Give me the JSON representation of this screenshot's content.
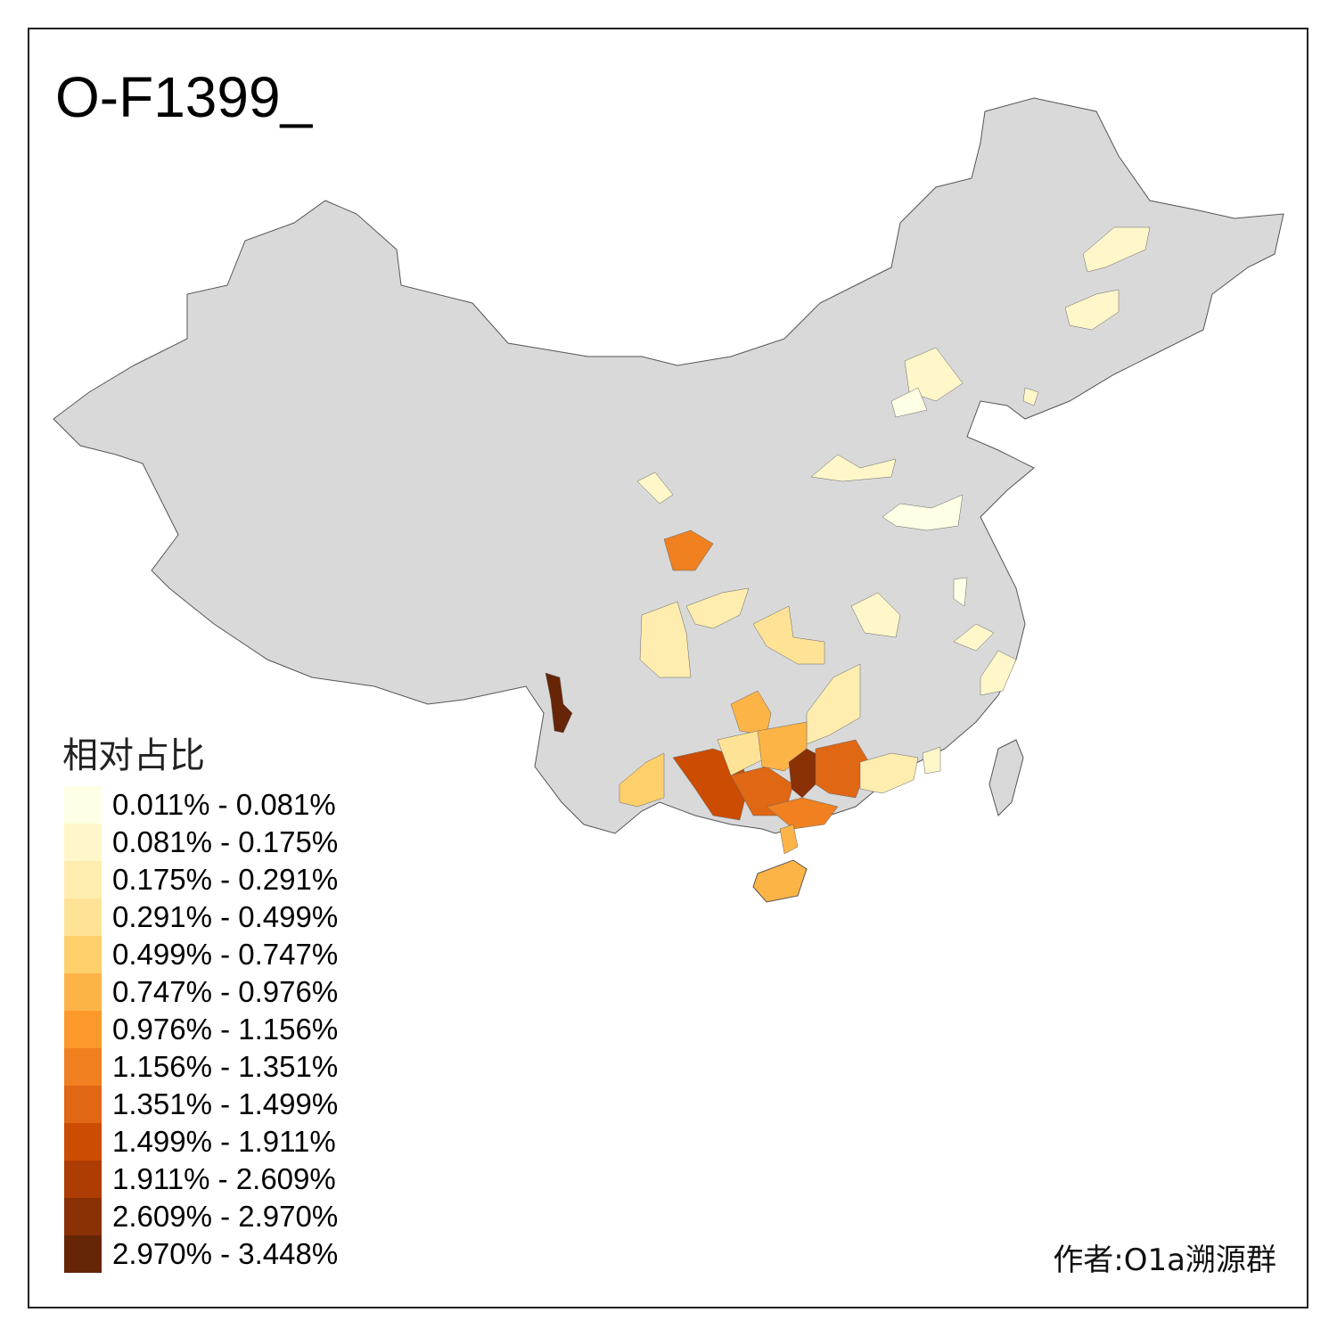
{
  "title": "O-F1399_",
  "legend": {
    "title": "相对占比",
    "classes": [
      {
        "label": "0.011% - 0.081%",
        "color": "#FFFFE5"
      },
      {
        "label": "0.081% - 0.175%",
        "color": "#FFF7C9"
      },
      {
        "label": "0.175% - 0.291%",
        "color": "#FEEDAE"
      },
      {
        "label": "0.291% - 0.499%",
        "color": "#FEE396"
      },
      {
        "label": "0.499% - 0.747%",
        "color": "#FED06C"
      },
      {
        "label": "0.747% - 0.976%",
        "color": "#FDB446"
      },
      {
        "label": "0.976% - 1.156%",
        "color": "#FB9A2B"
      },
      {
        "label": "1.156% - 1.351%",
        "color": "#F08020"
      },
      {
        "label": "1.351% - 1.499%",
        "color": "#E06714"
      },
      {
        "label": "1.499% - 1.911%",
        "color": "#CC4C02"
      },
      {
        "label": "1.911% - 2.609%",
        "color": "#AE3D04"
      },
      {
        "label": "2.609% - 2.970%",
        "color": "#8A3005"
      },
      {
        "label": "2.970% - 3.448%",
        "color": "#662506"
      }
    ]
  },
  "author": "作者:O1a溯源群",
  "map": {
    "base_color": "#D9D9D9",
    "border_color": "#555555"
  }
}
